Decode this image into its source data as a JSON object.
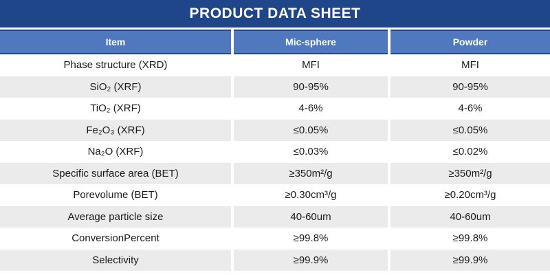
{
  "title": "PRODUCT DATA SHEET",
  "colors": {
    "title_bar": "#1E4688",
    "header_row": "#4F78BE",
    "stripe_gray": "#EBEBEB",
    "header_text": "#ffffff",
    "body_text": "#1a1a1a"
  },
  "table": {
    "columns": [
      "Item",
      "Mic-sphere",
      "Powder"
    ],
    "rows": [
      {
        "item": "Phase structure (XRD)",
        "mic_sphere": "MFI",
        "powder": "MFI"
      },
      {
        "item": "SiO₂ (XRF)",
        "mic_sphere": "90-95%",
        "powder": "90-95%"
      },
      {
        "item": "TiO₂ (XRF)",
        "mic_sphere": "4-6%",
        "powder": "4-6%"
      },
      {
        "item": "Fe₂O₃ (XRF)",
        "mic_sphere": "≤0.05%",
        "powder": "≤0.05%"
      },
      {
        "item": "Na₂O (XRF)",
        "mic_sphere": "≤0.03%",
        "powder": "≤0.02%"
      },
      {
        "item": "Specific surface area (BET)",
        "mic_sphere": "≥350m²/g",
        "powder": "≥350m²/g"
      },
      {
        "item": "Porevolume (BET)",
        "mic_sphere": "≥0.30cm³/g",
        "powder": "≥0.20cm³/g"
      },
      {
        "item": "Average particle size",
        "mic_sphere": "40-60um",
        "powder": "40-60um"
      },
      {
        "item": "ConversionPercent",
        "mic_sphere": "≥99.8%",
        "powder": "≥99.8%"
      },
      {
        "item": "Selectivity",
        "mic_sphere": "≥99.9%",
        "powder": "≥99.9%"
      }
    ]
  }
}
